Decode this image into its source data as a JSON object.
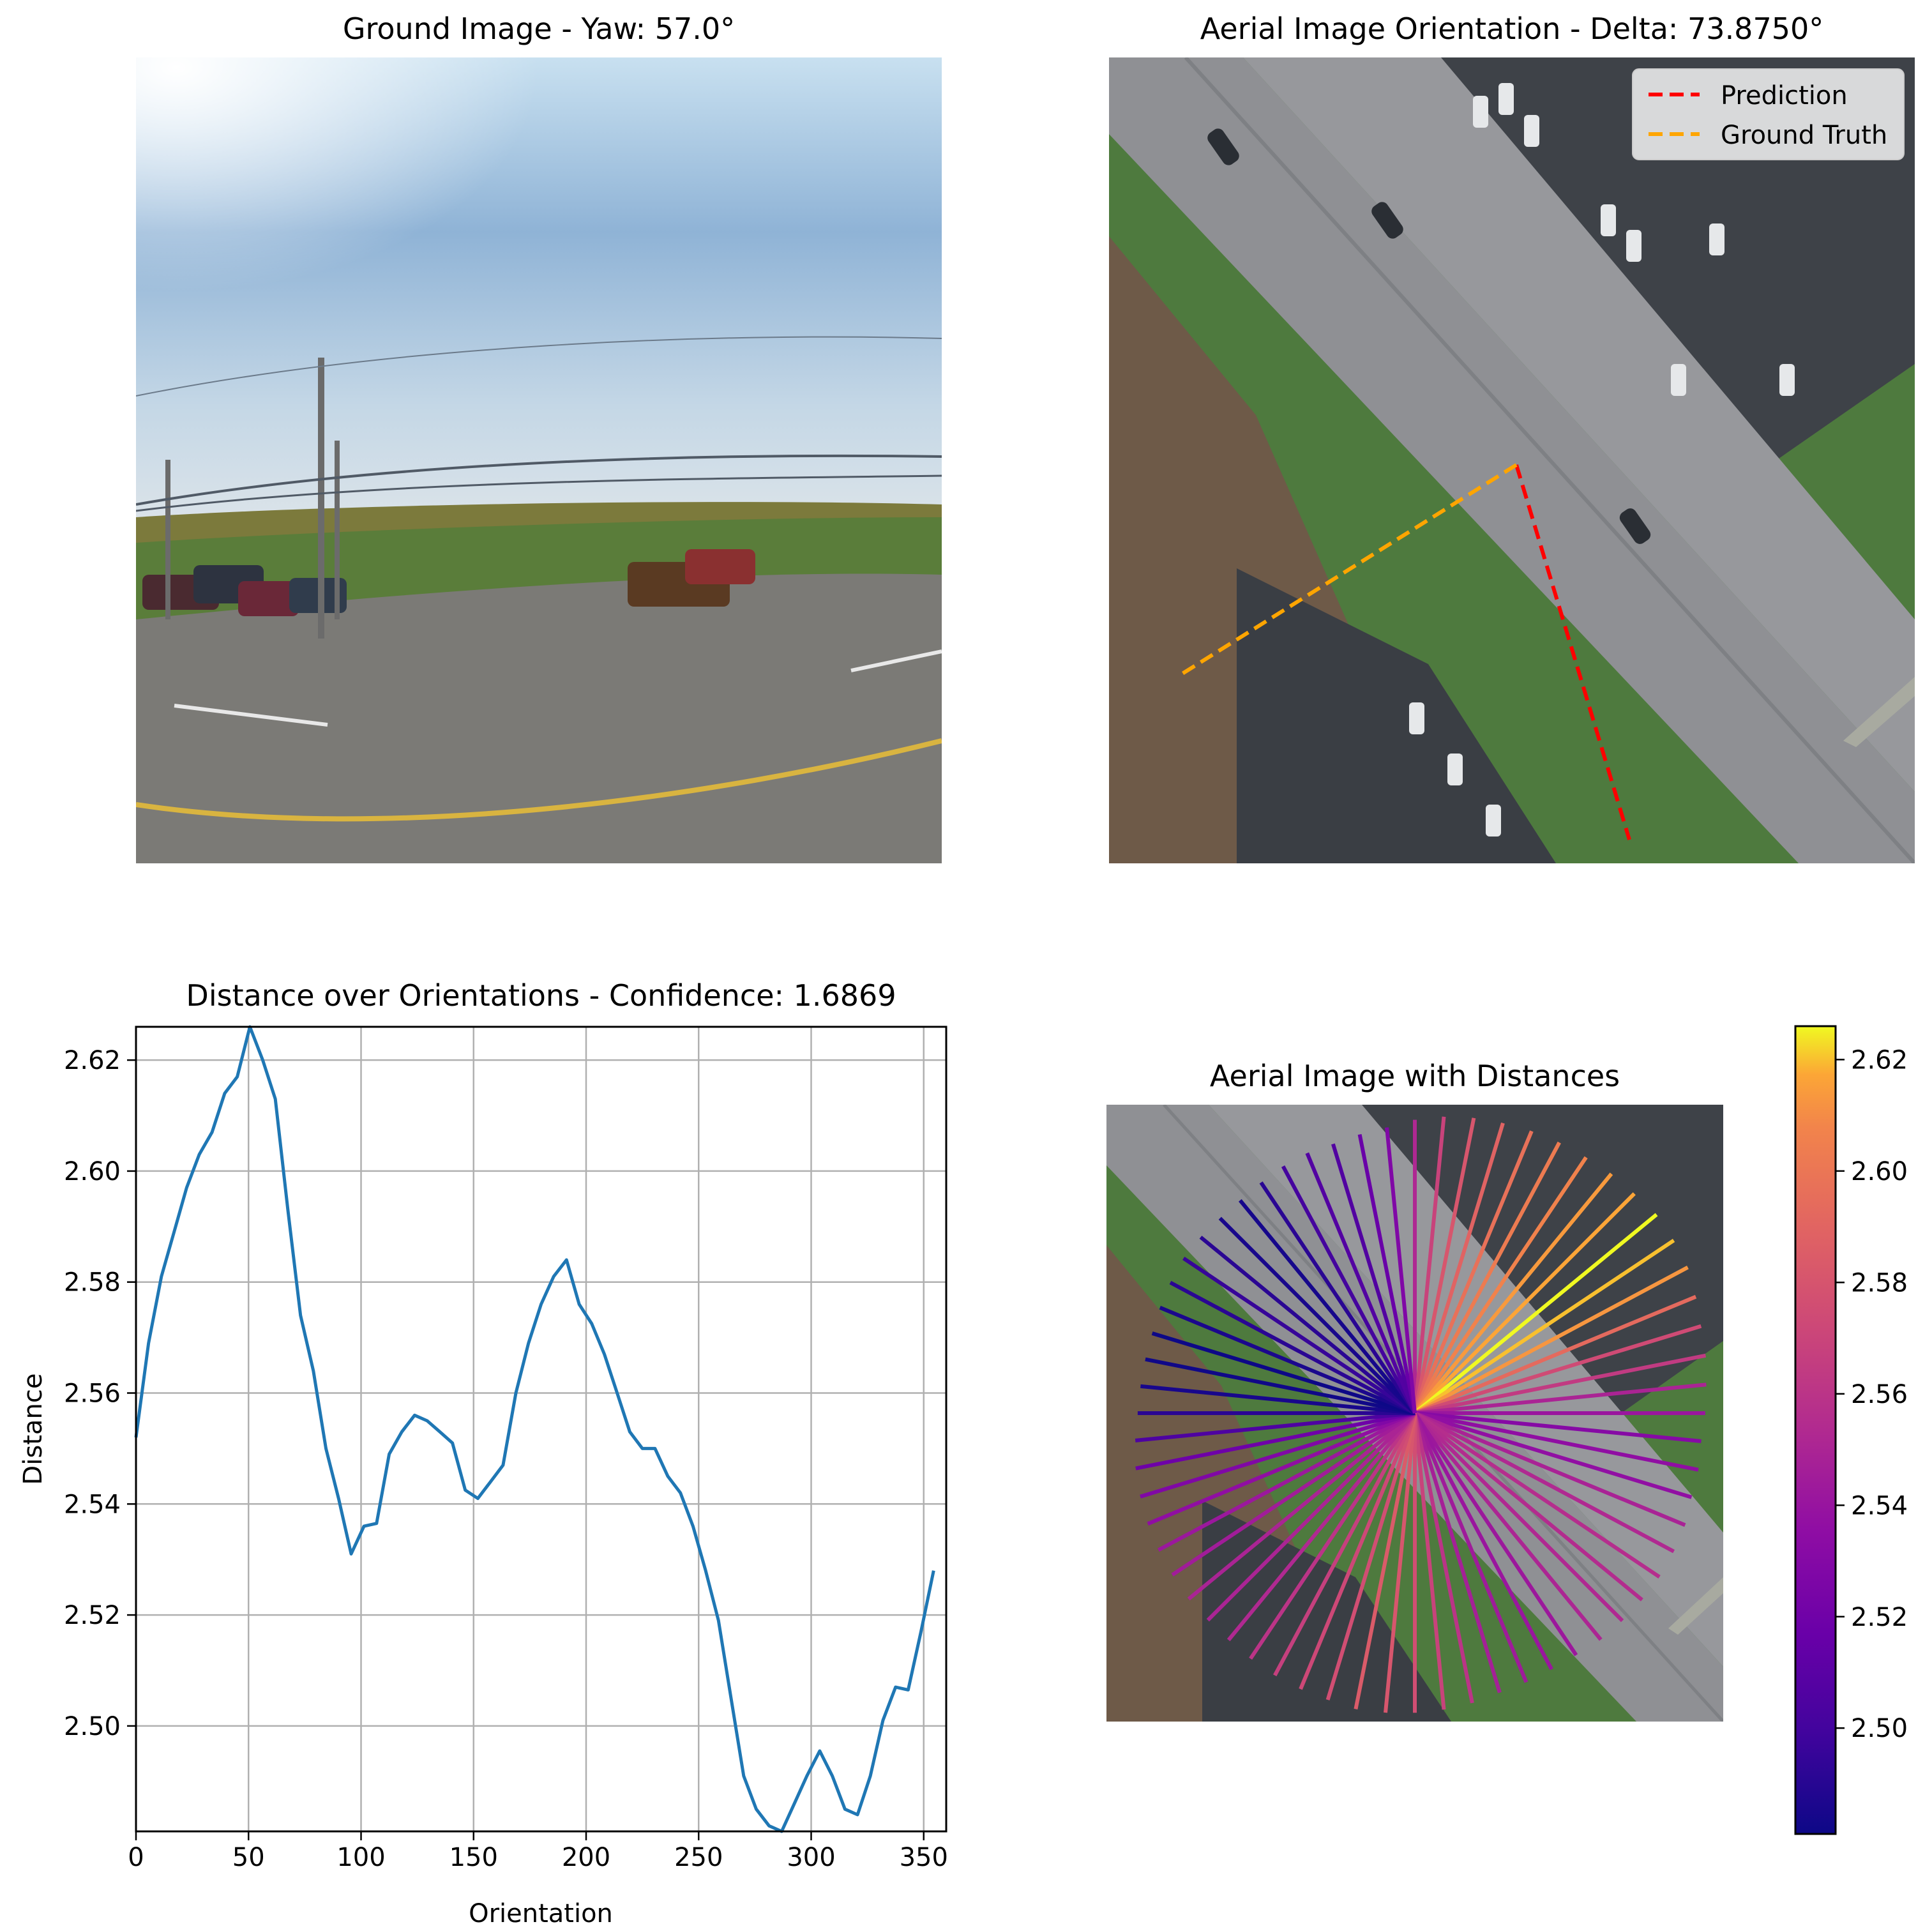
{
  "ground_panel": {
    "title": "Ground Image - Yaw: 57.0°"
  },
  "aerial_panel": {
    "title": "Aerial Image Orientation - Delta: 73.8750°",
    "legend": [
      {
        "label": "Prediction",
        "color": "#ff0000"
      },
      {
        "label": "Ground Truth",
        "color": "#ffa500"
      }
    ]
  },
  "dist_panel": {
    "title": "Aerial Image with Distances"
  },
  "colorbar": {
    "ticks": [
      "2.50",
      "2.52",
      "2.54",
      "2.56",
      "2.58",
      "2.60",
      "2.62"
    ]
  },
  "chart_data": {
    "type": "line",
    "title": "Distance over Orientations - Confidence: 1.6869",
    "xlabel": "Orientation",
    "ylabel": "Distance",
    "xlim": [
      0,
      360
    ],
    "ylim": [
      2.481,
      2.626
    ],
    "xticks": [
      0,
      50,
      100,
      150,
      200,
      250,
      300,
      350
    ],
    "yticks": [
      2.5,
      2.52,
      2.54,
      2.56,
      2.58,
      2.6,
      2.62
    ],
    "grid": true,
    "series": [
      {
        "color": "#1f77b4",
        "x": [
          0,
          5.6,
          11.3,
          16.9,
          22.5,
          28.1,
          33.8,
          39.4,
          45,
          50.6,
          56.3,
          61.9,
          67.5,
          73.1,
          78.8,
          84.4,
          90,
          95.6,
          101.3,
          106.9,
          112.5,
          118.1,
          123.8,
          129.4,
          135,
          140.6,
          146.3,
          151.9,
          157.5,
          163.1,
          168.8,
          174.4,
          180,
          185.6,
          191.3,
          196.9,
          202.5,
          208.1,
          213.8,
          219.4,
          225,
          230.6,
          236.3,
          241.9,
          247.5,
          253.1,
          258.8,
          264.4,
          270,
          275.6,
          281.3,
          286.9,
          292.5,
          298.1,
          303.8,
          309.4,
          315,
          320.6,
          326.3,
          331.9,
          337.5,
          343.1,
          348.8,
          354.4
        ],
        "y": [
          2.552,
          2.569,
          2.581,
          2.589,
          2.597,
          2.603,
          2.607,
          2.614,
          2.617,
          2.626,
          2.62,
          2.613,
          2.593,
          2.574,
          2.564,
          2.55,
          2.541,
          2.531,
          2.536,
          2.5365,
          2.549,
          2.553,
          2.556,
          2.555,
          2.553,
          2.551,
          2.5425,
          2.541,
          2.544,
          2.547,
          2.56,
          2.569,
          2.576,
          2.581,
          2.584,
          2.576,
          2.5725,
          2.567,
          2.56,
          2.553,
          2.55,
          2.55,
          2.545,
          2.542,
          2.536,
          2.528,
          2.519,
          2.505,
          2.491,
          2.485,
          2.482,
          2.481,
          2.486,
          2.491,
          2.4955,
          2.491,
          2.485,
          2.484,
          2.491,
          2.501,
          2.507,
          2.5065,
          2.517,
          2.528
        ]
      }
    ]
  }
}
